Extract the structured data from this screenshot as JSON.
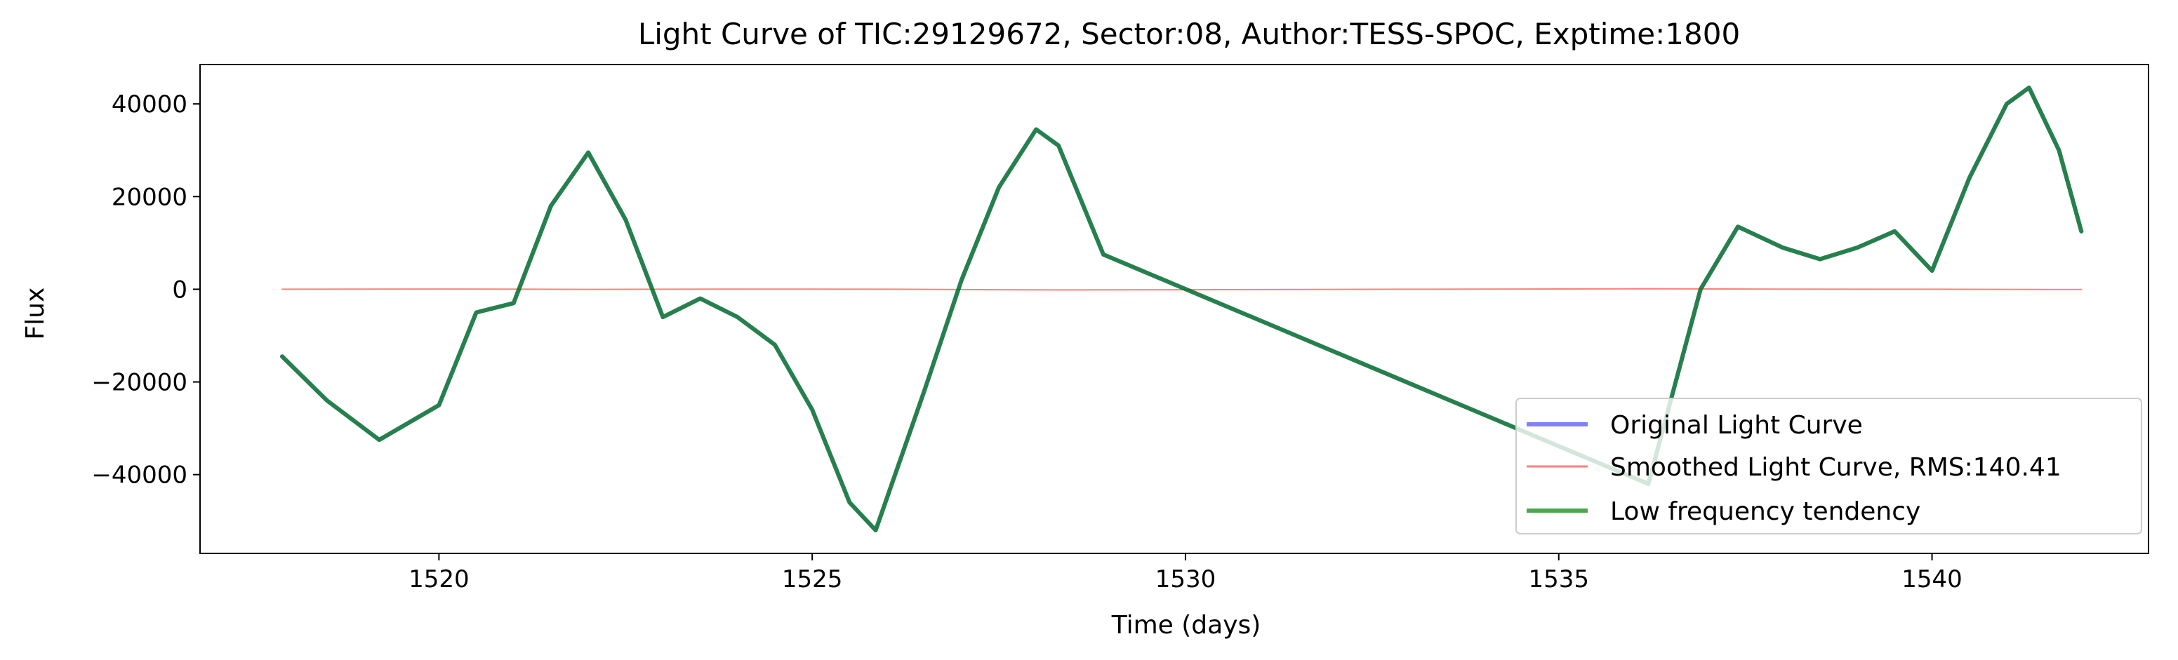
{
  "chart_data": {
    "type": "line",
    "title": "Light Curve of TIC:29129672, Sector:08, Author:TESS-SPOC, Exptime:1800",
    "xlabel": "Time (days)",
    "ylabel": "Flux",
    "xlim": [
      1516.8,
      1542.9
    ],
    "ylim": [
      -57000,
      48500
    ],
    "xticks": [
      1520,
      1525,
      1530,
      1535,
      1540
    ],
    "yticks": [
      -40000,
      -20000,
      0,
      20000,
      40000
    ],
    "xtick_labels": [
      "1520",
      "1525",
      "1530",
      "1535",
      "1540"
    ],
    "ytick_labels": [
      "−40000",
      "−20000",
      "0",
      "20000",
      "40000"
    ],
    "grid": false,
    "legend_position": "lower-right",
    "series": [
      {
        "name": "Original Light Curve",
        "color": "#0000ff",
        "x": [
          1517.9,
          1518.5,
          1519.2,
          1520.0,
          1520.5,
          1521.0,
          1521.5,
          1522.0,
          1522.5,
          1523.0,
          1523.5,
          1524.0,
          1524.5,
          1525.0,
          1525.5,
          1525.85,
          1526.5,
          1527.0,
          1527.5,
          1528.0,
          1528.3,
          1528.9,
          1536.2,
          1536.9,
          1537.4,
          1538.0,
          1538.5,
          1539.0,
          1539.5,
          1540.0,
          1540.5,
          1541.0,
          1541.3,
          1541.7,
          1542.0
        ],
        "y": [
          -14500,
          -24000,
          -32500,
          -25000,
          -5000,
          -3000,
          18000,
          29500,
          15000,
          -6000,
          -2000,
          -6000,
          -12000,
          -26000,
          -46000,
          -52000,
          -22000,
          2000,
          22000,
          34500,
          31000,
          7500,
          -42000,
          0,
          13500,
          9000,
          6500,
          9000,
          12500,
          4000,
          24000,
          40000,
          43500,
          30000,
          12500
        ]
      },
      {
        "name": "Smoothed Light Curve, RMS:140.41",
        "color": "#ff0000",
        "x": [
          1517.9,
          1520.0,
          1522.0,
          1524.0,
          1526.0,
          1528.3,
          1530.0,
          1533.0,
          1536.2,
          1538.0,
          1540.0,
          1542.0
        ],
        "y": [
          0,
          50,
          -30,
          40,
          0,
          -150,
          -100,
          0,
          100,
          40,
          0,
          -60
        ]
      },
      {
        "name": "Low frequency tendency",
        "color": "#008000",
        "x": [
          1517.9,
          1518.5,
          1519.2,
          1520.0,
          1520.5,
          1521.0,
          1521.5,
          1522.0,
          1522.5,
          1523.0,
          1523.5,
          1524.0,
          1524.5,
          1525.0,
          1525.5,
          1525.85,
          1526.5,
          1527.0,
          1527.5,
          1528.0,
          1528.3,
          1528.9,
          1536.2,
          1536.9,
          1537.4,
          1538.0,
          1538.5,
          1539.0,
          1539.5,
          1540.0,
          1540.5,
          1541.0,
          1541.3,
          1541.7,
          1542.0
        ],
        "y": [
          -14500,
          -24000,
          -32500,
          -25000,
          -5000,
          -3000,
          18000,
          29500,
          15000,
          -6000,
          -2000,
          -6000,
          -12000,
          -26000,
          -46000,
          -52000,
          -22000,
          2000,
          22000,
          34500,
          31000,
          7500,
          -42000,
          0,
          13500,
          9000,
          6500,
          9000,
          12500,
          4000,
          24000,
          40000,
          43500,
          30000,
          12500
        ]
      }
    ]
  }
}
